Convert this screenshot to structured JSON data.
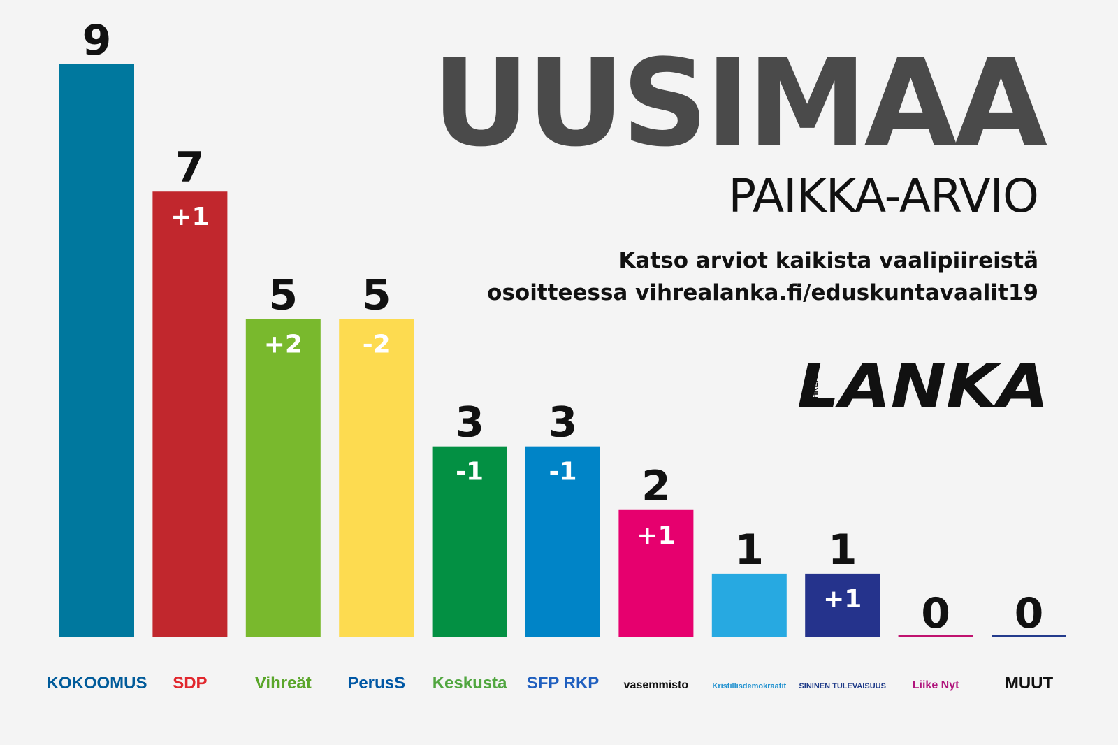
{
  "header": {
    "title": "UUSIMAA",
    "subtitle": "PAIKKA-ARVIO",
    "info_line1": "Katso arviot kaikista vaalipiireistä",
    "info_line2": "osoitteessa vihrealanka.fi/eduskuntavaalit19",
    "brand_small": "VIHREÄ",
    "brand_large": "LANKA"
  },
  "chart_data": {
    "type": "bar",
    "ylim": [
      0,
      9
    ],
    "categories": [
      "KOKOOMUS",
      "SDP",
      "Vihreät",
      "PerusS",
      "Keskusta",
      "SFP RKP",
      "vasemmisto",
      "Kristillisdemokraatit",
      "SININEN TULEVAISUUS",
      "Liike Nyt",
      "MUUT"
    ],
    "values": [
      9,
      7,
      5,
      5,
      3,
      3,
      2,
      1,
      1,
      0,
      0
    ],
    "changes": [
      "",
      "+1",
      "+2",
      "-2",
      "-1",
      "-1",
      "+1",
      "",
      "+1",
      "",
      ""
    ],
    "colors": [
      "#00789e",
      "#c1272d",
      "#79b92d",
      "#fddb50",
      "#039043",
      "#0084c7",
      "#e6006e",
      "#27a9e1",
      "#25338c",
      "#c0126f",
      "#233b8c"
    ],
    "label_colors": [
      "#005b9a",
      "#e1272d",
      "#5aa62a",
      "#0057a4",
      "#50a63f",
      "#1f5fbf",
      "#111111",
      "#1e90cf",
      "#1f3b88",
      "#b0147c",
      "#111111"
    ]
  }
}
